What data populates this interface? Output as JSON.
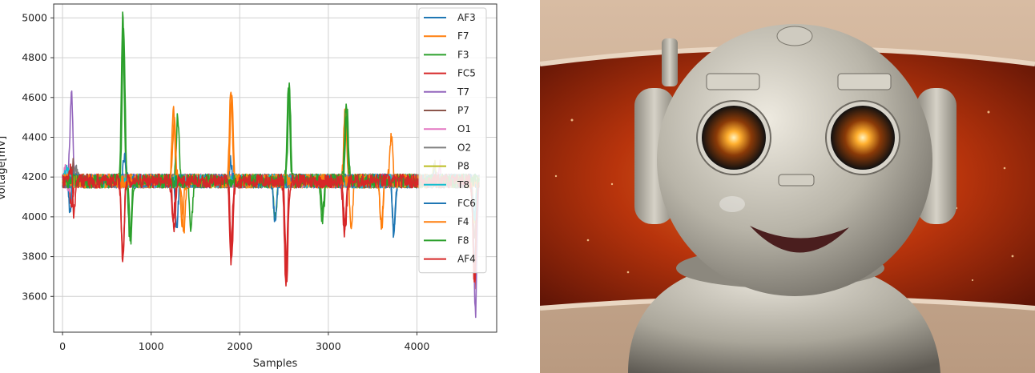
{
  "chart_data": {
    "type": "line",
    "xlabel": "Samples",
    "ylabel": "Voltage[mV]",
    "xlim": [
      -100,
      4900
    ],
    "ylim": [
      3420,
      5070
    ],
    "xticks": [
      0,
      1000,
      2000,
      3000,
      4000
    ],
    "yticks": [
      3600,
      3800,
      4000,
      4200,
      4400,
      4600,
      4800,
      5000
    ],
    "grid": true,
    "legend_position": "top-right",
    "baseline": 4180,
    "x_end": 4700,
    "series": [
      {
        "name": "AF3",
        "color": "#1f77b4",
        "peaks": [
          [
            110,
            4300
          ],
          [
            4200,
            4240
          ]
        ],
        "troughs": [
          [
            90,
            3960
          ],
          [
            1290,
            3960
          ],
          [
            3740,
            3910
          ],
          [
            4650,
            3780
          ]
        ]
      },
      {
        "name": "F7",
        "color": "#ff7f0e",
        "peaks": [
          [
            1250,
            4540
          ],
          [
            1900,
            4660
          ],
          [
            3190,
            4560
          ],
          [
            3710,
            4420
          ]
        ],
        "troughs": [
          [
            1370,
            3930
          ],
          [
            3260,
            3940
          ],
          [
            3600,
            3940
          ],
          [
            4650,
            3700
          ]
        ]
      },
      {
        "name": "F3",
        "color": "#2ca02c",
        "peaks": [
          [
            680,
            5000
          ],
          [
            1300,
            4500
          ],
          [
            2550,
            4670
          ],
          [
            3200,
            4570
          ]
        ],
        "troughs": [
          [
            770,
            3890
          ],
          [
            1450,
            3940
          ],
          [
            2400,
            3990
          ],
          [
            2930,
            3990
          ],
          [
            4650,
            3720
          ]
        ]
      },
      {
        "name": "FC5",
        "color": "#d62728",
        "peaks": [
          [
            100,
            4400
          ],
          [
            1250,
            4450
          ],
          [
            3180,
            4400
          ]
        ],
        "troughs": [
          [
            100,
            3840
          ],
          [
            680,
            3780
          ],
          [
            1250,
            3710
          ],
          [
            1900,
            3790
          ],
          [
            2520,
            3670
          ],
          [
            3180,
            3690
          ],
          [
            4650,
            3650
          ]
        ]
      },
      {
        "name": "T7",
        "color": "#9467bd",
        "peaks": [
          [
            100,
            4620
          ]
        ],
        "troughs": [
          [
            4660,
            3510
          ]
        ]
      },
      {
        "name": "P7",
        "color": "#8c564b",
        "peaks": [
          [
            120,
            4260
          ]
        ],
        "troughs": [
          [
            4650,
            3900
          ]
        ]
      },
      {
        "name": "O1",
        "color": "#e377c2",
        "peaks": [
          [
            40,
            4260
          ],
          [
            4260,
            4250
          ]
        ],
        "troughs": [
          [
            60,
            4100
          ]
        ]
      },
      {
        "name": "O2",
        "color": "#7f7f7f",
        "peaks": [
          [
            150,
            4240
          ]
        ],
        "troughs": [
          [
            4650,
            3980
          ]
        ]
      },
      {
        "name": "P8",
        "color": "#bcbd22",
        "peaks": [
          [
            4200,
            4260
          ]
        ],
        "troughs": [
          [
            4650,
            4000
          ]
        ]
      },
      {
        "name": "T8",
        "color": "#17becf",
        "peaks": [
          [
            50,
            4240
          ]
        ],
        "troughs": [
          [
            4650,
            4000
          ]
        ]
      },
      {
        "name": "FC6",
        "color": "#1f77b4",
        "peaks": [
          [
            700,
            4300
          ],
          [
            1900,
            4280
          ]
        ],
        "troughs": [
          [
            2400,
            3970
          ],
          [
            3740,
            3920
          ]
        ]
      },
      {
        "name": "F4",
        "color": "#ff7f0e",
        "peaks": [
          [
            1260,
            4500
          ],
          [
            1910,
            4620
          ]
        ],
        "troughs": [
          [
            1350,
            3950
          ],
          [
            3600,
            3960
          ]
        ]
      },
      {
        "name": "F8",
        "color": "#2ca02c",
        "peaks": [
          [
            690,
            4950
          ],
          [
            2560,
            4640
          ],
          [
            3210,
            4540
          ]
        ],
        "troughs": [
          [
            760,
            3900
          ],
          [
            2940,
            4000
          ]
        ]
      },
      {
        "name": "AF4",
        "color": "#d62728",
        "peaks": [
          [
            110,
            4420
          ],
          [
            1260,
            4400
          ],
          [
            3190,
            4420
          ]
        ],
        "troughs": [
          [
            120,
            3850
          ],
          [
            680,
            3800
          ],
          [
            1260,
            3720
          ],
          [
            1910,
            3800
          ],
          [
            2530,
            3690
          ],
          [
            3190,
            3700
          ],
          [
            4650,
            3680
          ]
        ]
      }
    ]
  },
  "robot_image": {
    "subject": "smiling cartoon robot in front of red starfield",
    "colors": {
      "bg_frame": "#c9a98f",
      "space": "#b33a0f",
      "robot_body": "#b9b5aa",
      "eye_glow": "#ffaa30",
      "mouth": "#4a1e1e"
    }
  }
}
